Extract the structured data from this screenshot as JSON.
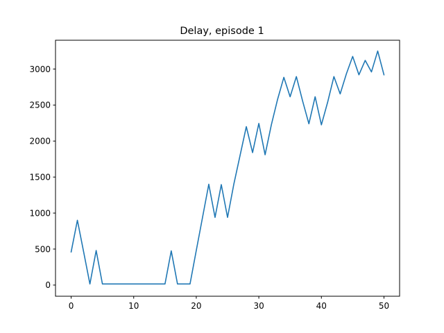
{
  "chart_data": {
    "type": "line",
    "title": "Delay, episode 1",
    "xlabel": "",
    "ylabel": "",
    "xlim": [
      -2.5,
      52.5
    ],
    "ylim": [
      -155,
      3400
    ],
    "xticks": [
      0,
      10,
      20,
      30,
      40,
      50
    ],
    "yticks": [
      0,
      500,
      1000,
      1500,
      2000,
      2500,
      3000
    ],
    "grid": false,
    "line_color": "#1f77b4",
    "series": [
      {
        "x": [
          0,
          1,
          2,
          3,
          4,
          5,
          6,
          7,
          8,
          9,
          10,
          11,
          12,
          13,
          14,
          15,
          16,
          17,
          18,
          19,
          20,
          21,
          22,
          23,
          24,
          25,
          26,
          27,
          28,
          29,
          30,
          31,
          32,
          33,
          34,
          35,
          36,
          37,
          38,
          39,
          40,
          41,
          42,
          43,
          44,
          45,
          46,
          47,
          48,
          49,
          50
        ],
        "values": [
          460,
          900,
          460,
          15,
          480,
          15,
          15,
          15,
          15,
          15,
          15,
          15,
          15,
          15,
          15,
          15,
          475,
          15,
          15,
          15,
          480,
          940,
          1400,
          940,
          1395,
          940,
          1400,
          1800,
          2200,
          1840,
          2245,
          1810,
          2225,
          2580,
          2885,
          2615,
          2895,
          2555,
          2240,
          2615,
          2225,
          2540,
          2895,
          2655,
          2935,
          3175,
          2920,
          3120,
          2960,
          3250,
          2920
        ]
      }
    ]
  }
}
